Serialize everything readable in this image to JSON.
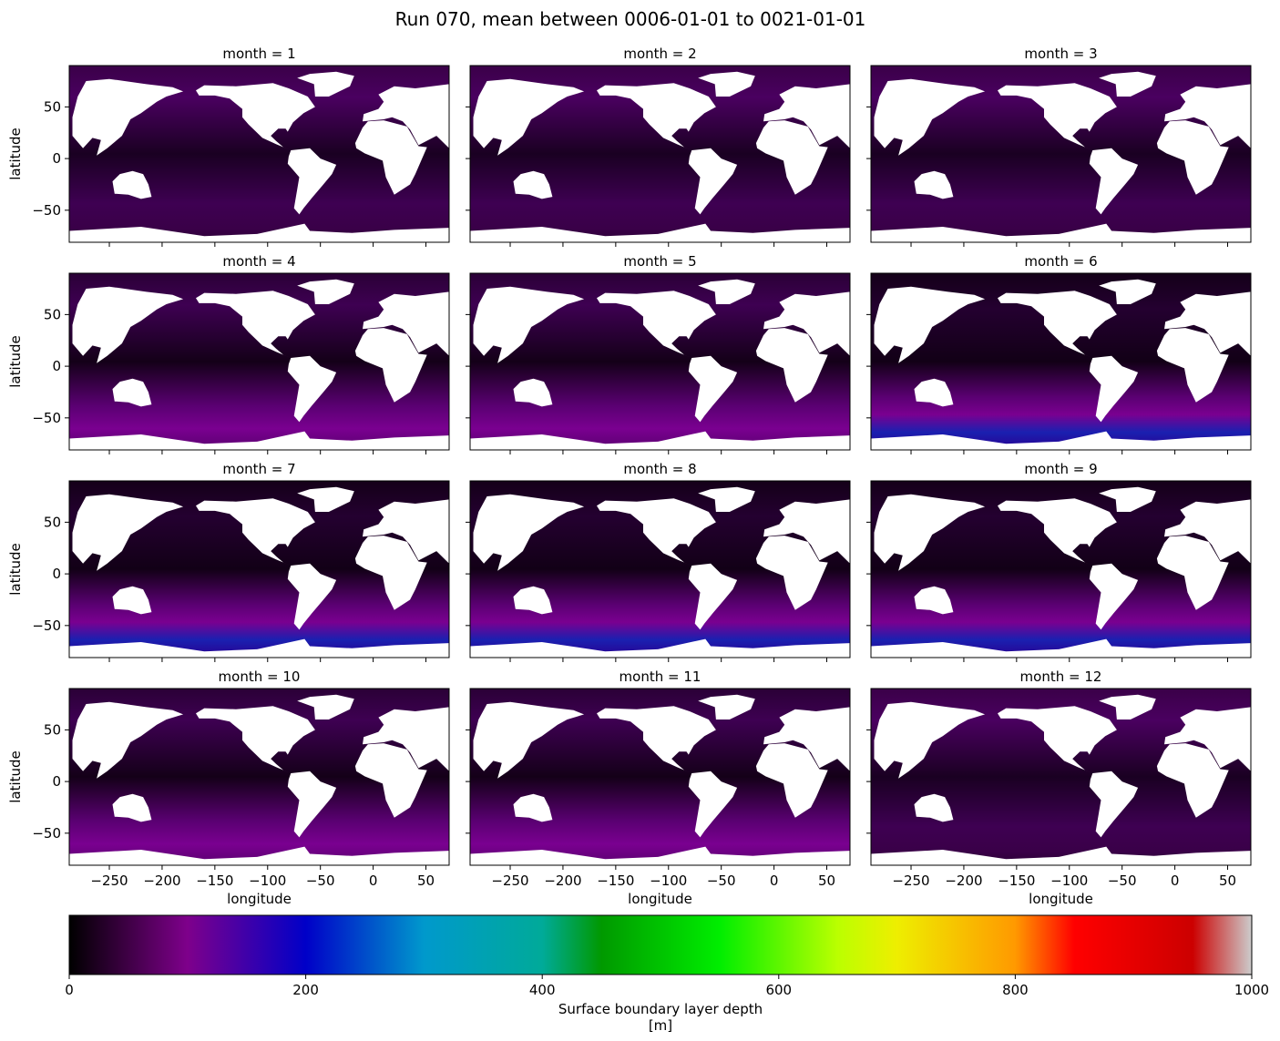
{
  "title": "Run 070, mean between 0006-01-01 to 0021-01-01",
  "chart_data": {
    "type": "heatmap",
    "title": "Run 070, mean between 0006-01-01 to 0021-01-01",
    "xlabel": "longitude",
    "ylabel": "latitude",
    "xlim": [
      -288,
      72
    ],
    "ylim": [
      -81,
      90
    ],
    "xticks": [
      -250,
      -200,
      -150,
      -100,
      -50,
      0,
      50
    ],
    "yticks": [
      -50,
      0,
      50
    ],
    "panels": [
      {
        "title": "month = 1",
        "month": 1
      },
      {
        "title": "month = 2",
        "month": 2
      },
      {
        "title": "month = 3",
        "month": 3
      },
      {
        "title": "month = 4",
        "month": 4
      },
      {
        "title": "month = 5",
        "month": 5
      },
      {
        "title": "month = 6",
        "month": 6
      },
      {
        "title": "month = 7",
        "month": 7
      },
      {
        "title": "month = 8",
        "month": 8
      },
      {
        "title": "month = 9",
        "month": 9
      },
      {
        "title": "month = 10",
        "month": 10
      },
      {
        "title": "month = 11",
        "month": 11
      },
      {
        "title": "month = 12",
        "month": 12
      }
    ],
    "colorbar": {
      "label": "Surface boundary layer depth",
      "units": "[m]",
      "range": [
        0,
        1000
      ],
      "ticks": [
        0,
        200,
        400,
        600,
        800,
        1000
      ],
      "colormap": "nipy_spectral",
      "stops": [
        {
          "value": 0,
          "color": "#000000"
        },
        {
          "value": 100,
          "color": "#7e008b"
        },
        {
          "value": 200,
          "color": "#0000c8"
        },
        {
          "value": 300,
          "color": "#0099cc"
        },
        {
          "value": 400,
          "color": "#00aa99"
        },
        {
          "value": 450,
          "color": "#009900"
        },
        {
          "value": 550,
          "color": "#00ee00"
        },
        {
          "value": 650,
          "color": "#bbff00"
        },
        {
          "value": 700,
          "color": "#eeee00"
        },
        {
          "value": 800,
          "color": "#ff9900"
        },
        {
          "value": 850,
          "color": "#ff0000"
        },
        {
          "value": 950,
          "color": "#cc0000"
        },
        {
          "value": 1000,
          "color": "#cccccc"
        }
      ]
    }
  }
}
